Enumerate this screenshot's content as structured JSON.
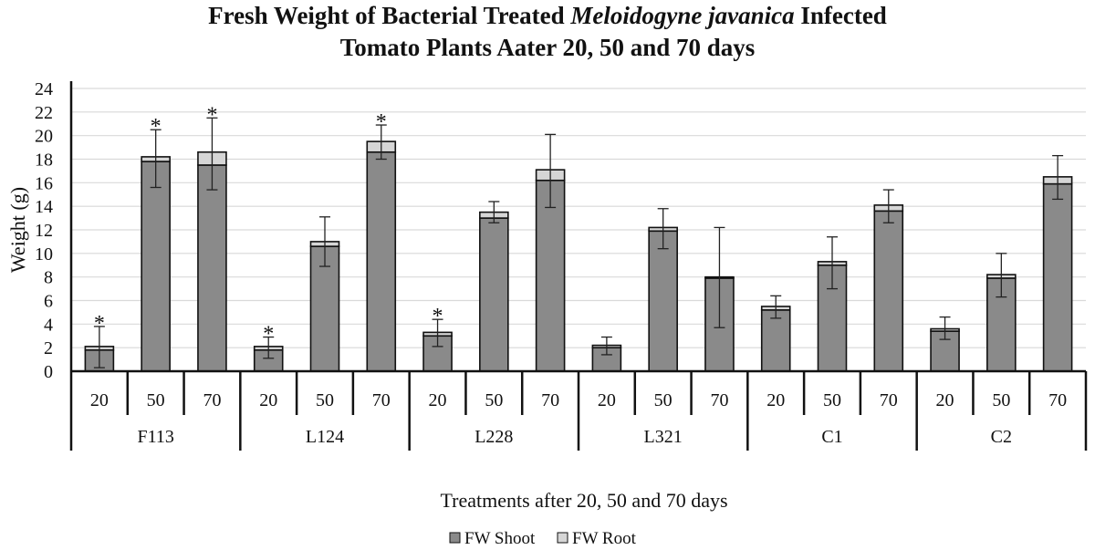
{
  "chart_data": {
    "type": "bar",
    "stacked": true,
    "title_parts": [
      "Fresh Weight of Bacterial Treated ",
      "Meloidogyne javanica",
      " Infected",
      "Tomato Plants Aater 20, 50 and 70 days"
    ],
    "xlabel": "Treatments after 20, 50 and 70 days",
    "ylabel": "Weight (g)",
    "ylim": [
      0,
      24
    ],
    "yticks": [
      0,
      2,
      4,
      6,
      8,
      10,
      12,
      14,
      16,
      18,
      20,
      22,
      24
    ],
    "grid": true,
    "legend_position": "bottom",
    "groups": [
      "F113",
      "L124",
      "L228",
      "L321",
      "C1",
      "C2"
    ],
    "days": [
      "20",
      "50",
      "70"
    ],
    "series": [
      {
        "name": "FW Shoot",
        "color": "#8a8a8a",
        "values": [
          1.8,
          17.8,
          17.5,
          1.8,
          10.6,
          18.6,
          3.0,
          13.0,
          16.2,
          2.0,
          11.9,
          7.9,
          5.2,
          9.0,
          13.6,
          3.4,
          7.9,
          15.9
        ]
      },
      {
        "name": "FW Root",
        "color": "#d6d6d6",
        "values": [
          0.3,
          0.4,
          1.1,
          0.3,
          0.4,
          0.9,
          0.3,
          0.5,
          0.9,
          0.2,
          0.3,
          0.1,
          0.3,
          0.3,
          0.5,
          0.2,
          0.3,
          0.6
        ]
      }
    ],
    "error_bars": [
      [
        0.3,
        3.8
      ],
      [
        15.6,
        20.5
      ],
      [
        15.4,
        21.5
      ],
      [
        1.1,
        2.9
      ],
      [
        8.9,
        13.1
      ],
      [
        18.0,
        20.9
      ],
      [
        2.1,
        4.4
      ],
      [
        12.6,
        14.4
      ],
      [
        13.9,
        20.1
      ],
      [
        1.4,
        2.9
      ],
      [
        10.4,
        13.8
      ],
      [
        3.7,
        12.2
      ],
      [
        4.5,
        6.4
      ],
      [
        7.0,
        11.4
      ],
      [
        12.6,
        15.4
      ],
      [
        2.7,
        4.6
      ],
      [
        6.3,
        10.0
      ],
      [
        14.6,
        18.3
      ]
    ],
    "significance_marker": "*",
    "significant": [
      true,
      true,
      true,
      true,
      false,
      true,
      true,
      false,
      false,
      false,
      false,
      false,
      false,
      false,
      false,
      false,
      false,
      false
    ]
  }
}
